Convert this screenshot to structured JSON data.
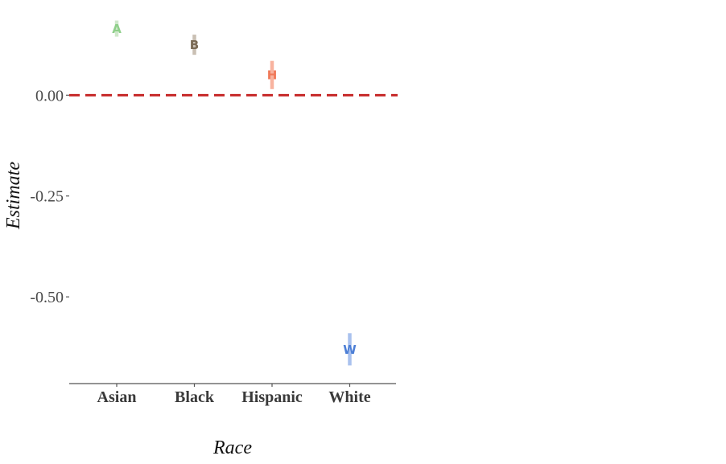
{
  "chart_data": {
    "type": "scatter",
    "xlabel": "Race",
    "ylabel": "Estimate",
    "categories": [
      "Asian",
      "Black",
      "Hispanic",
      "White"
    ],
    "yticks": [
      {
        "value": 0.0,
        "label": "0.00"
      },
      {
        "value": -0.25,
        "label": "-0.25"
      },
      {
        "value": -0.5,
        "label": "-0.50"
      }
    ],
    "ylim": [
      -0.715,
      0.2
    ],
    "reference_line": {
      "value": 0.0,
      "color": "#c62828",
      "style": "dashed"
    },
    "points": [
      {
        "category": "Asian",
        "label": "A",
        "estimate": 0.165,
        "lower": 0.145,
        "upper": 0.185,
        "color": "#8fcf8a",
        "bar_color": "#cfe8cb"
      },
      {
        "category": "Black",
        "label": "B",
        "estimate": 0.125,
        "lower": 0.1,
        "upper": 0.15,
        "color": "#7a6a55",
        "bar_color": "#c9bfb3"
      },
      {
        "category": "Hispanic",
        "label": "H",
        "estimate": 0.05,
        "lower": 0.015,
        "upper": 0.085,
        "color": "#f07a5a",
        "bar_color": "#f8b39f"
      },
      {
        "category": "White",
        "label": "W",
        "estimate": -0.63,
        "lower": -0.67,
        "upper": -0.59,
        "color": "#4d7fd6",
        "bar_color": "#a9c1ee"
      }
    ],
    "grid": false,
    "legend": "none"
  }
}
